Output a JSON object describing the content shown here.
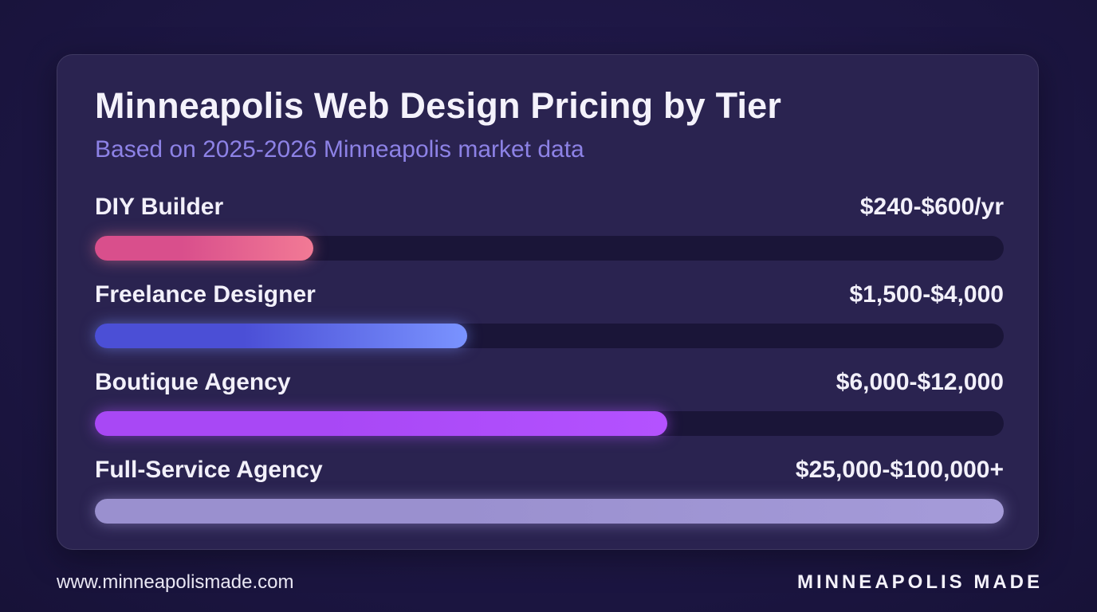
{
  "chart_data": {
    "type": "bar",
    "orientation": "horizontal",
    "title": "Minneapolis Web Design Pricing by Tier",
    "subtitle": "Based on 2025-2026 Minneapolis market data",
    "categories": [
      "DIY Builder",
      "Freelance Designer",
      "Boutique Agency",
      "Full-Service Agency"
    ],
    "value_labels": [
      "$240-$600/yr",
      "$1,500-$4,000",
      "$6,000-$12,000",
      "$25,000-$100,000+"
    ],
    "fill_fractions": [
      0.24,
      0.41,
      0.63,
      1.0
    ],
    "bar_colors": [
      [
        "#d94f8c",
        "#f27a95"
      ],
      [
        "#4b4fd6",
        "#7a93ff"
      ],
      [
        "#a848f5",
        "#b452ff"
      ],
      [
        "#9a90cf",
        "#a59bd9"
      ]
    ],
    "grid": false,
    "legend": "none"
  },
  "footer": {
    "url": "www.minneapolismade.com",
    "brand": "MINNEAPOLIS MADE"
  },
  "colors": {
    "background": "#1b1540",
    "card": "#2a2350",
    "track": "#1a1538",
    "subtitle": "#8d82e6",
    "text": "#f2f0fa"
  }
}
